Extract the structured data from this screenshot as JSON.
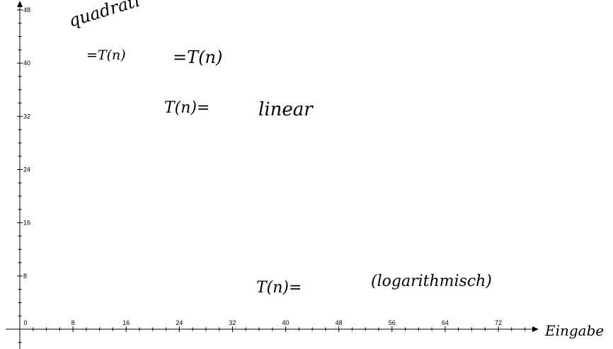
{
  "chart_data": {
    "type": "line",
    "x_ticks": [
      0,
      8,
      16,
      24,
      32,
      40,
      48,
      56,
      64,
      72
    ],
    "y_ticks": [
      8,
      16,
      24,
      32,
      40,
      48
    ],
    "xlim": [
      0,
      72
    ],
    "ylim": [
      0,
      48
    ],
    "xlabel": "Eingabe",
    "ylabel": "",
    "grid": false,
    "annotations": {
      "quadratic_label": "quadrati",
      "quad_expr_1": "=T(n)",
      "quad_expr_2": "=T(n)",
      "linear_expr": "T(n)=",
      "linear_label": "linear",
      "log_expr": "T(n)=",
      "log_label": "(logarithmisch)"
    }
  }
}
